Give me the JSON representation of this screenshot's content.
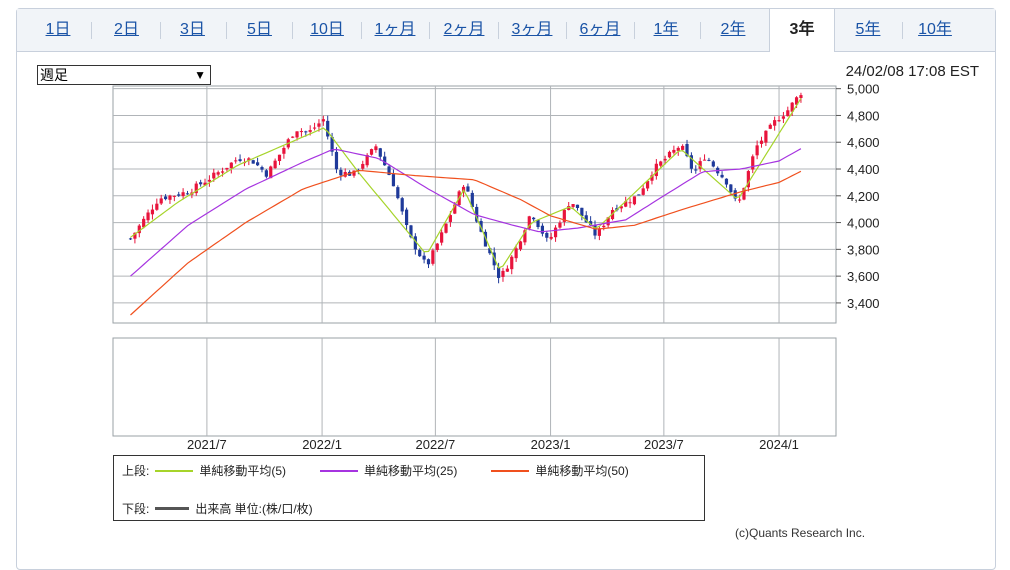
{
  "tabs": [
    {
      "label": "1日",
      "active": false
    },
    {
      "label": "2日",
      "active": false
    },
    {
      "label": "3日",
      "active": false
    },
    {
      "label": "5日",
      "active": false
    },
    {
      "label": "10日",
      "active": false
    },
    {
      "label": "1ヶ月",
      "active": false
    },
    {
      "label": "2ヶ月",
      "active": false
    },
    {
      "label": "3ヶ月",
      "active": false
    },
    {
      "label": "6ヶ月",
      "active": false
    },
    {
      "label": "1年",
      "active": false
    },
    {
      "label": "2年",
      "active": false
    },
    {
      "label": "3年",
      "active": true
    },
    {
      "label": "5年",
      "active": false
    },
    {
      "label": "10年",
      "active": false
    }
  ],
  "interval_select": {
    "value": "週足"
  },
  "timestamp": "24/02/08 17:08 EST",
  "legend": {
    "upper_prefix": "上段:",
    "lower_prefix": "下段:",
    "ma5": "単純移動平均(5)",
    "ma25": "単純移動平均(25)",
    "ma50": "単純移動平均(50)",
    "volume": "出来高 単位:(株/口/枚)"
  },
  "credit": "(c)Quants Research Inc.",
  "colors": {
    "up": "#e8143c",
    "down": "#1f3a9a",
    "ma5": "#a6d42a",
    "ma25": "#a634e0",
    "ma50": "#f0501e",
    "volume": "#555555"
  },
  "chart_data": {
    "type": "candlestick",
    "y_ticks": [
      "5,000",
      "4,800",
      "4,600",
      "4,400",
      "4,200",
      "4,000",
      "3,800",
      "3,600",
      "3,400"
    ],
    "ylim": [
      3250,
      5020
    ],
    "x_ticks": [
      "2021/7",
      "2022/1",
      "2022/7",
      "2023/1",
      "2023/7",
      "2024/1"
    ],
    "x_tick_dates": [
      "2021-07-01",
      "2022-01-01",
      "2022-07-01",
      "2023-01-01",
      "2023-07-01",
      "2024-01-01"
    ],
    "x_range": [
      "2021-02-01",
      "2024-04-01"
    ],
    "grid": true,
    "close_anchors": [
      [
        "2021-03-01",
        3880
      ],
      [
        "2021-04-15",
        4180
      ],
      [
        "2021-06-01",
        4230
      ],
      [
        "2021-07-15",
        4360
      ],
      [
        "2021-08-20",
        4480
      ],
      [
        "2021-09-10",
        4470
      ],
      [
        "2021-10-05",
        4360
      ],
      [
        "2021-11-20",
        4700
      ],
      [
        "2021-12-10",
        4670
      ],
      [
        "2022-01-03",
        4770
      ],
      [
        "2022-01-25",
        4380
      ],
      [
        "2022-02-20",
        4360
      ],
      [
        "2022-03-28",
        4570
      ],
      [
        "2022-04-25",
        4290
      ],
      [
        "2022-05-20",
        3900
      ],
      [
        "2022-06-17",
        3670
      ],
      [
        "2022-07-10",
        3900
      ],
      [
        "2022-08-16",
        4300
      ],
      [
        "2022-09-10",
        3950
      ],
      [
        "2022-10-12",
        3580
      ],
      [
        "2022-11-05",
        3780
      ],
      [
        "2022-12-01",
        4080
      ],
      [
        "2022-12-28",
        3850
      ],
      [
        "2023-02-02",
        4170
      ],
      [
        "2023-03-15",
        3900
      ],
      [
        "2023-04-10",
        4100
      ],
      [
        "2023-05-20",
        4200
      ],
      [
        "2023-06-15",
        4400
      ],
      [
        "2023-07-28",
        4580
      ],
      [
        "2023-08-18",
        4370
      ],
      [
        "2023-09-05",
        4500
      ],
      [
        "2023-10-10",
        4300
      ],
      [
        "2023-10-27",
        4120
      ],
      [
        "2023-11-25",
        4560
      ],
      [
        "2023-12-28",
        4770
      ],
      [
        "2024-01-15",
        4840
      ],
      [
        "2024-02-08",
        4990
      ]
    ],
    "moving_averages": {
      "ma5": [
        [
          "2021-03-01",
          3890
        ],
        [
          "2021-05-15",
          4150
        ],
        [
          "2021-08-20",
          4430
        ],
        [
          "2022-01-05",
          4710
        ],
        [
          "2022-03-01",
          4370
        ],
        [
          "2022-06-17",
          3760
        ],
        [
          "2022-08-16",
          4250
        ],
        [
          "2022-10-12",
          3640
        ],
        [
          "2022-12-01",
          4000
        ],
        [
          "2023-02-02",
          4120
        ],
        [
          "2023-03-15",
          3950
        ],
        [
          "2023-07-28",
          4550
        ],
        [
          "2023-10-27",
          4170
        ],
        [
          "2024-02-08",
          4950
        ]
      ],
      "ma25": [
        [
          "2021-03-01",
          3600
        ],
        [
          "2021-06-01",
          3980
        ],
        [
          "2021-09-01",
          4250
        ],
        [
          "2021-12-01",
          4450
        ],
        [
          "2022-01-20",
          4550
        ],
        [
          "2022-04-01",
          4480
        ],
        [
          "2022-06-20",
          4250
        ],
        [
          "2022-09-01",
          4060
        ],
        [
          "2022-10-25",
          3990
        ],
        [
          "2022-12-15",
          3930
        ],
        [
          "2023-02-15",
          3960
        ],
        [
          "2023-05-01",
          4020
        ],
        [
          "2023-07-01",
          4200
        ],
        [
          "2023-09-01",
          4380
        ],
        [
          "2023-11-01",
          4400
        ],
        [
          "2024-01-01",
          4460
        ],
        [
          "2024-02-08",
          4560
        ]
      ],
      "ma50": [
        [
          "2021-03-01",
          3310
        ],
        [
          "2021-06-01",
          3700
        ],
        [
          "2021-09-01",
          4000
        ],
        [
          "2021-12-01",
          4250
        ],
        [
          "2022-03-01",
          4390
        ],
        [
          "2022-06-01",
          4350
        ],
        [
          "2022-09-01",
          4320
        ],
        [
          "2022-11-15",
          4170
        ],
        [
          "2023-01-01",
          4050
        ],
        [
          "2023-03-15",
          3950
        ],
        [
          "2023-05-15",
          3980
        ],
        [
          "2023-08-01",
          4100
        ],
        [
          "2023-11-01",
          4230
        ],
        [
          "2024-01-01",
          4300
        ],
        [
          "2024-02-08",
          4390
        ]
      ]
    }
  }
}
